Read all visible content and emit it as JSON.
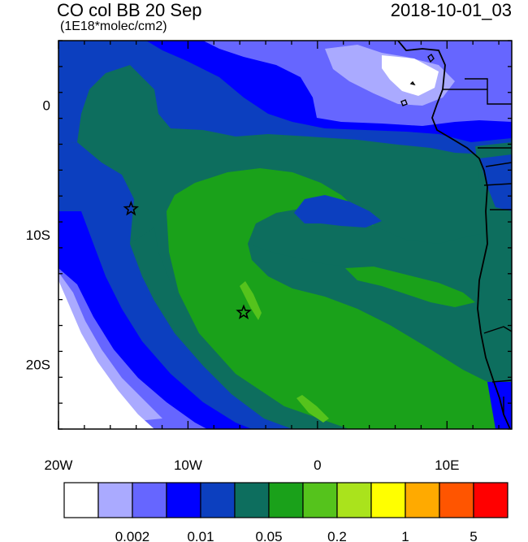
{
  "header": {
    "title": "CO col BB 20 Sep",
    "subtitle": "(1E18*molec/cm2)",
    "timestamp": "2018-10-01_03"
  },
  "chart_data": {
    "type": "heatmap",
    "title": "CO col BB 20 Sep",
    "units": "(1E18*molec/cm2)",
    "time": "2018-10-01_03",
    "xlim": [
      -20,
      15
    ],
    "ylim": [
      -25,
      5
    ],
    "x_ticks": [
      {
        "value": -20,
        "label": "20W"
      },
      {
        "value": -10,
        "label": "10W"
      },
      {
        "value": 0,
        "label": "0"
      },
      {
        "value": 10,
        "label": "10E"
      }
    ],
    "y_ticks": [
      {
        "value": 0,
        "label": "0"
      },
      {
        "value": -10,
        "label": "10S"
      },
      {
        "value": -20,
        "label": "20S"
      }
    ],
    "markers": [
      {
        "symbol": "star",
        "lon": -14.4,
        "lat": -8.0
      },
      {
        "symbol": "star",
        "lon": -5.7,
        "lat": -16.0
      }
    ],
    "colorbar": {
      "colors": [
        "#ffffff",
        "#aaaaff",
        "#6666ff",
        "#0000ff",
        "#0c3fbf",
        "#0d6e5e",
        "#1aa11a",
        "#55c31c",
        "#aae31c",
        "#ffff00",
        "#ffaa00",
        "#ff5500",
        "#ff0000"
      ],
      "labels": [
        {
          "after_box": 2,
          "text": "0.002"
        },
        {
          "after_box": 4,
          "text": "0.01"
        },
        {
          "after_box": 6,
          "text": "0.05"
        },
        {
          "after_box": 8,
          "text": "0.2"
        },
        {
          "after_box": 10,
          "text": "1"
        },
        {
          "after_box": 12,
          "text": "5"
        }
      ]
    }
  }
}
